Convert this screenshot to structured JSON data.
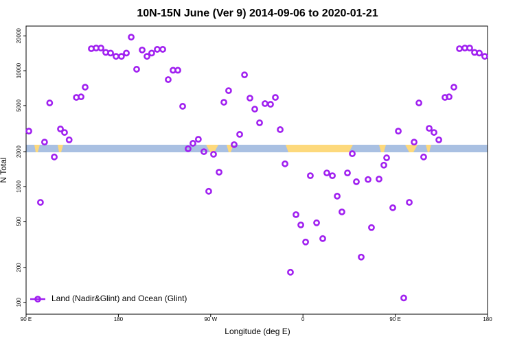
{
  "chart_data": {
    "type": "scatter",
    "title": "10N-15N June (Ver 9)   2014-09-06 to 2020-01-21",
    "x_label": "Longitude (deg E)",
    "y_label": "N Total",
    "log_y": true,
    "legend": "bottom-left",
    "xlim": [
      90,
      540
    ],
    "xticks": [
      {
        "value": 90,
        "label": "90 E"
      },
      180,
      {
        "value": 270,
        "label": "90 W"
      },
      {
        "value": 360,
        "label": "0"
      },
      {
        "value": 450,
        "label": "90 E"
      },
      {
        "value": 540,
        "label": "180"
      }
    ],
    "ylim": [
      79,
      24300
    ],
    "yticks": [
      100,
      200,
      500,
      1000,
      2000,
      5000,
      10000,
      20000
    ],
    "series": [
      {
        "name": "Land (Nadir&Glint) and Ocean (Glint)",
        "color": "#a020f0",
        "x": [
          92.7,
          104,
          108,
          113,
          117.5,
          123.5,
          127.5,
          132,
          139,
          143.6,
          147.6,
          153.6,
          158.3,
          163,
          167.7,
          172.4,
          177.7,
          183,
          187.8,
          192.5,
          197.8,
          203.2,
          207.9,
          212.5,
          217.9,
          223.3,
          228.6,
          233.3,
          238,
          242.7,
          248,
          252.7,
          258,
          263.4,
          268.1,
          272.8,
          278.2,
          282.9,
          287.5,
          292.9,
          298.3,
          303,
          308.3,
          313,
          317.7,
          323,
          328.4,
          333.1,
          337.8,
          342.5,
          347.8,
          353.2,
          357.9,
          362.6,
          367.2,
          373.3,
          379.3,
          383.3,
          388.7,
          393.4,
          398,
          403.4,
          408.1,
          412.1,
          416.8,
          423.5,
          426.8,
          434.2,
          438.9,
          441.6,
          447.6,
          453,
          458.3,
          463.7,
          468.4,
          473.1,
          477.7,
          483.1,
          487.8,
          492.5,
          498.5,
          502.5,
          507.2,
          512.6,
          517.9,
          522.6,
          527.3,
          532,
          537.3
        ],
        "values": [
          3010,
          730,
          2420,
          5270,
          1800,
          3140,
          2930,
          2530,
          5880,
          5950,
          7210,
          15500,
          15700,
          15700,
          14400,
          14200,
          13300,
          13300,
          14200,
          19500,
          10300,
          15100,
          13300,
          14200,
          15300,
          15300,
          8380,
          10100,
          10100,
          4930,
          2120,
          2360,
          2560,
          2000,
          910,
          1900,
          1330,
          5340,
          6730,
          2300,
          2820,
          9210,
          5800,
          4660,
          3550,
          5200,
          5130,
          5880,
          3100,
          1570,
          182,
          572,
          466,
          332,
          1240,
          486,
          355,
          1310,
          1240,
          826,
          604,
          1310,
          1920,
          1100,
          246,
          1150,
          442,
          1160,
          1530,
          1770,
          656,
          3010,
          109,
          730,
          2420,
          5270,
          1800,
          3180,
          2930,
          2530,
          5880,
          5950,
          7210,
          15500,
          15700,
          15700,
          14400,
          14200,
          13300
        ]
      }
    ]
  }
}
